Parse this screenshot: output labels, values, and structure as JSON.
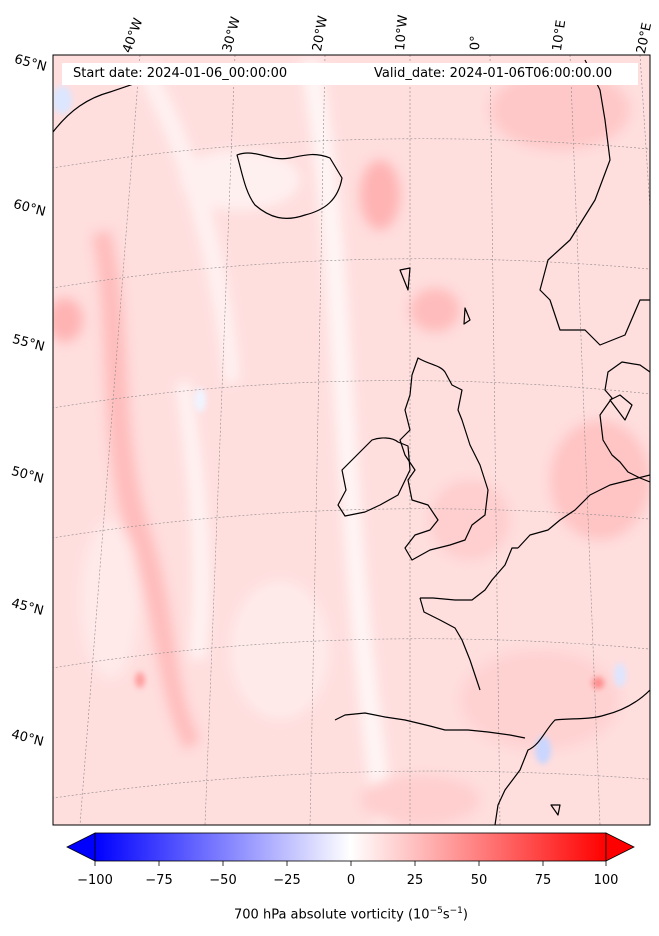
{
  "map": {
    "start_date": "Start date: 2024-01-06_00:00:00",
    "valid_date": "Valid_date: 2024-01-06T06:00:00.00",
    "longitude_labels": [
      "40°W",
      "30°W",
      "20°W",
      "10°W",
      "0°",
      "10°E",
      "20°E"
    ],
    "latitude_labels": [
      "65°N",
      "60°N",
      "55°N",
      "50°N",
      "45°N",
      "40°N"
    ],
    "projection": "conic",
    "field": "700 hPa absolute vorticity"
  },
  "colorbar": {
    "ticks": [
      "−100",
      "−75",
      "−50",
      "−25",
      "0",
      "25",
      "50",
      "75",
      "100"
    ],
    "range": [
      -100,
      100
    ],
    "colormap": "bwr",
    "label_prefix": "700 hPa absolute vorticity (10",
    "label_exp1": "−5",
    "label_mid": "s",
    "label_exp2": "−1",
    "label_suffix": ")"
  },
  "colors": {
    "negative": "#0000ff",
    "neutral": "#ffffff",
    "positive": "#ff0000",
    "coastline": "#000000"
  }
}
